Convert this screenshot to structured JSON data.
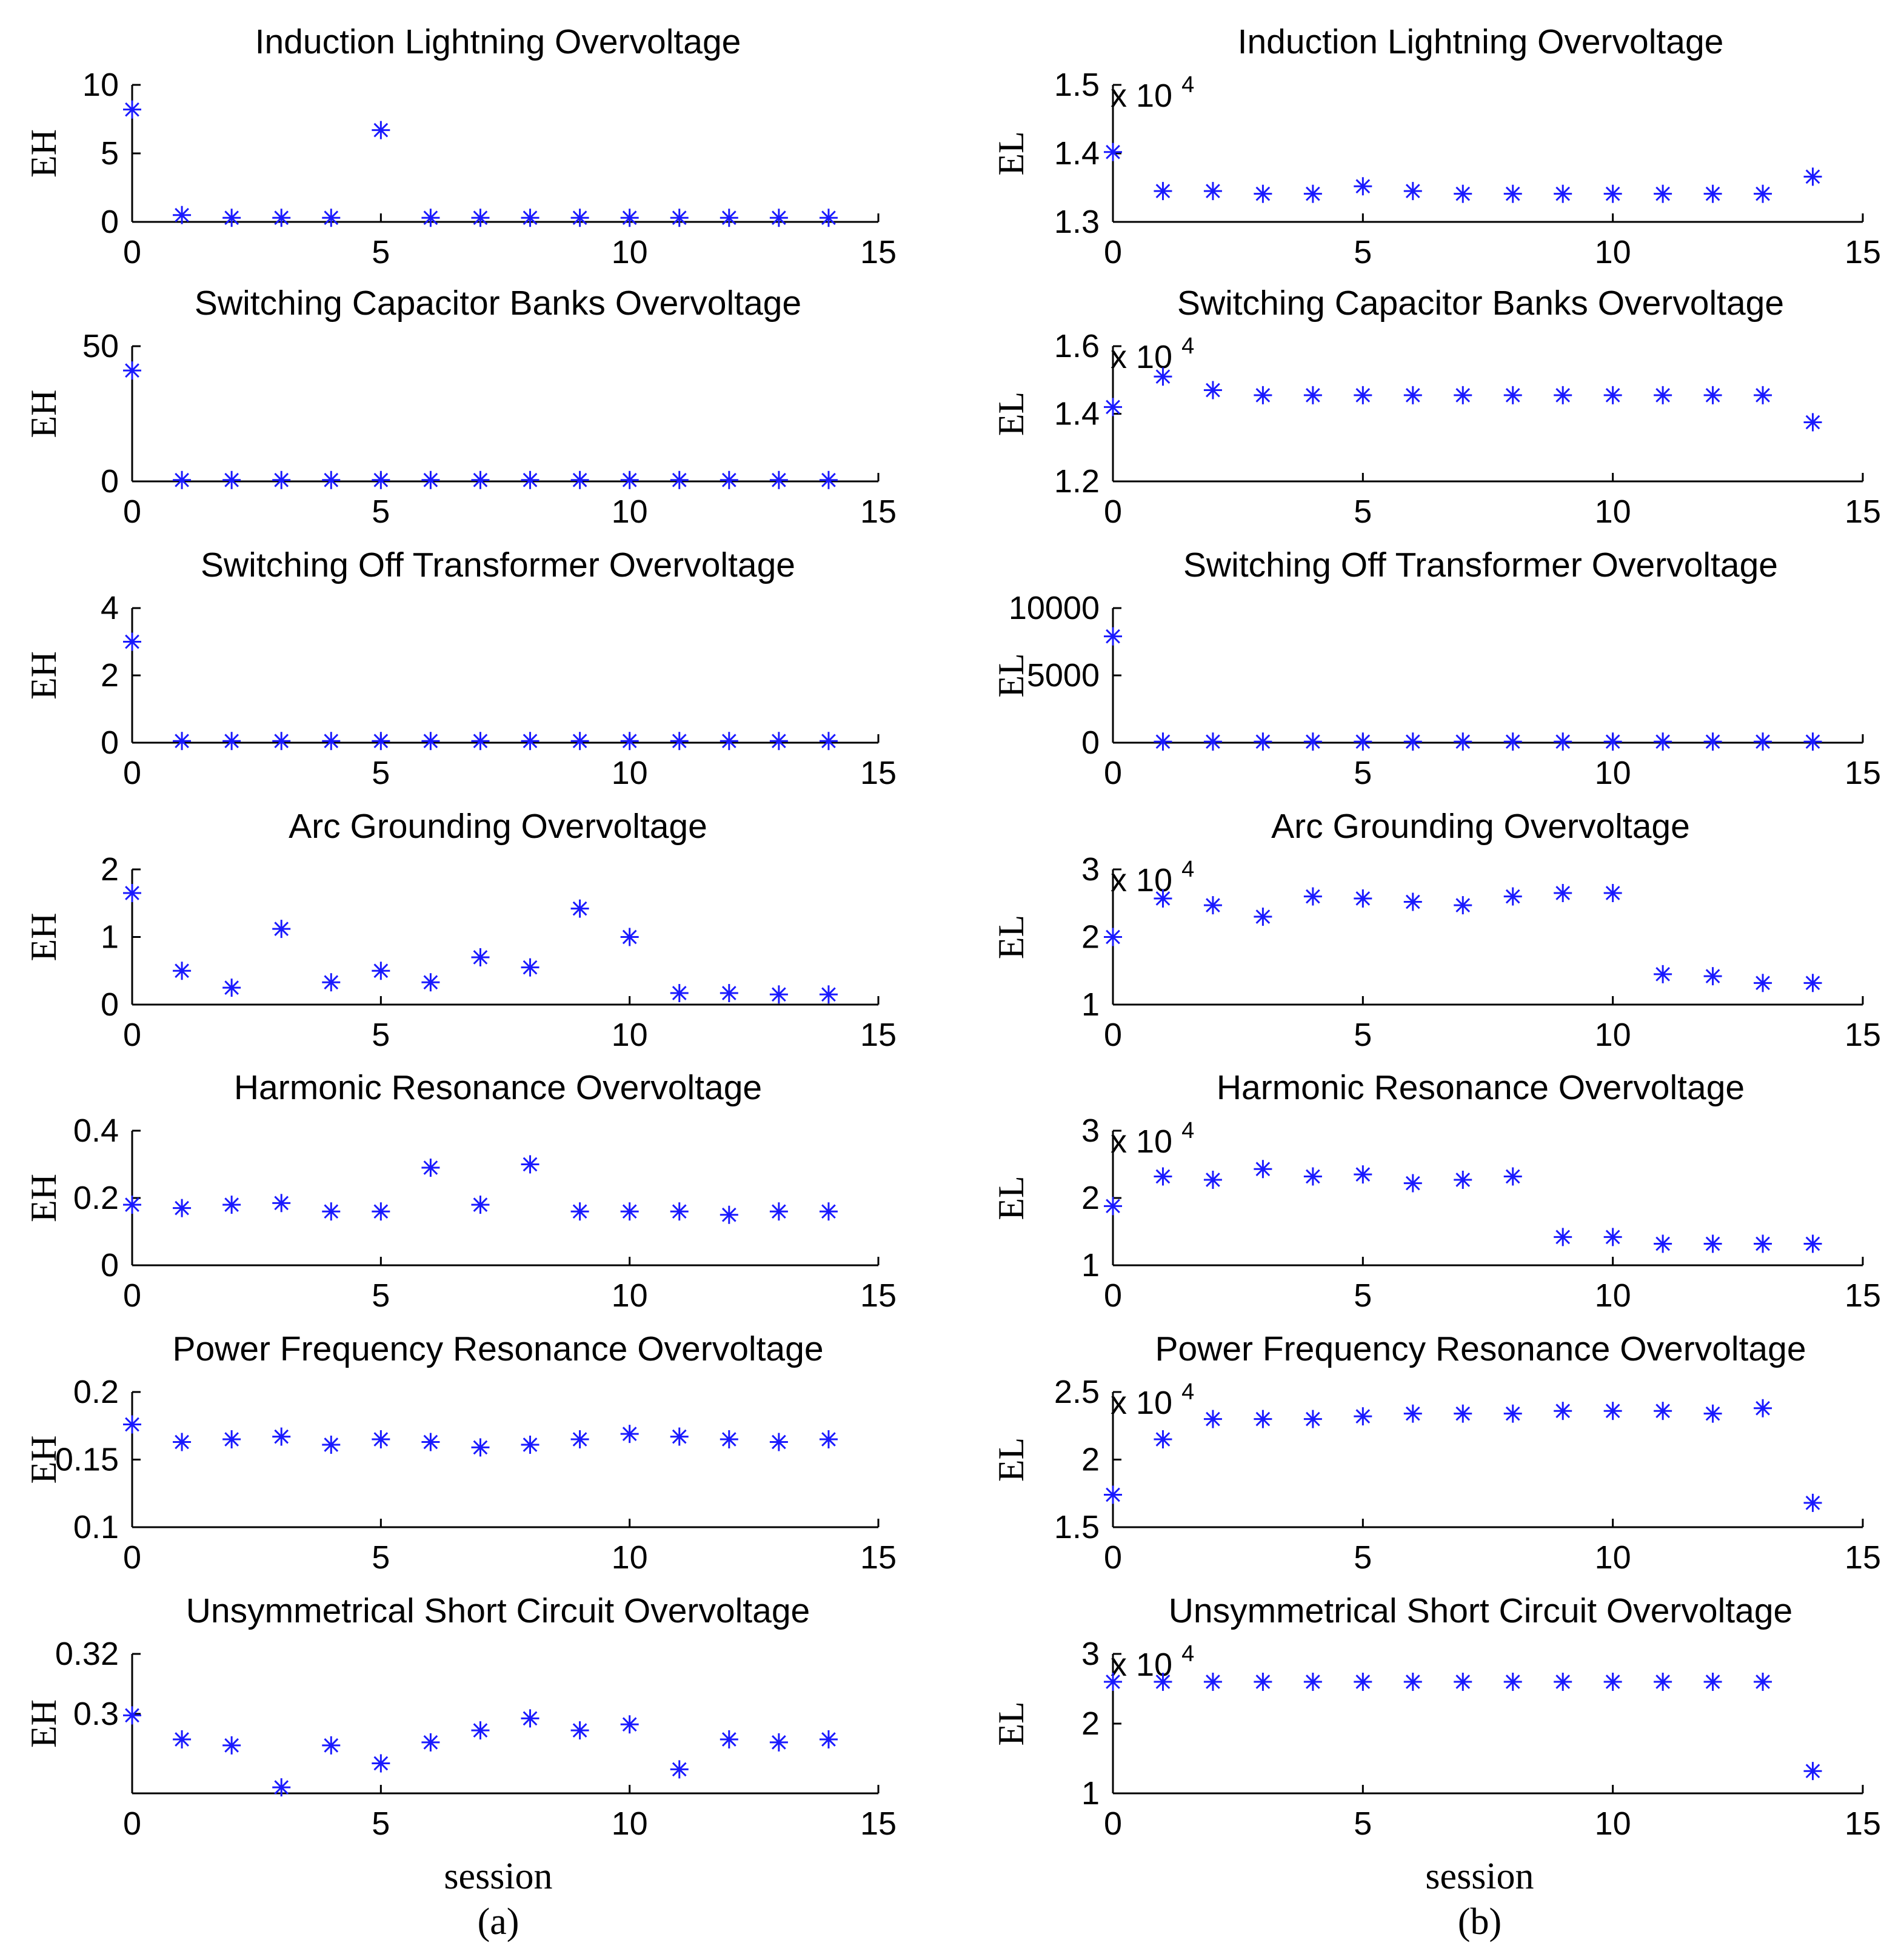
{
  "colors": {
    "marker": "#1a1aff",
    "axis": "#000000",
    "background": "#ffffff"
  },
  "columns": [
    {
      "xlabel": "session",
      "caption": "(a)"
    },
    {
      "xlabel": "session",
      "caption": "(b)"
    }
  ],
  "chart_data": [
    {
      "type": "scatter",
      "column": 0,
      "row": 0,
      "title": "Induction Lightning Overvoltage",
      "ylabel": "EH",
      "xlabel": "",
      "multiplier": "",
      "xlim": [
        0,
        15
      ],
      "xticks": [
        0,
        5,
        10,
        15
      ],
      "xtick_labels": [
        "0",
        "5",
        "10",
        "15"
      ],
      "ylim": [
        0,
        10
      ],
      "yticks": [
        0,
        5,
        10
      ],
      "ytick_labels": [
        "0",
        "5",
        "10"
      ],
      "x": [
        0,
        1,
        2,
        3,
        4,
        5,
        6,
        7,
        8,
        9,
        10,
        11,
        12,
        13,
        14
      ],
      "y": [
        8.2,
        0.5,
        0.3,
        0.3,
        0.3,
        6.7,
        0.3,
        0.3,
        0.3,
        0.3,
        0.3,
        0.3,
        0.3,
        0.3,
        0.3
      ]
    },
    {
      "type": "scatter",
      "column": 0,
      "row": 1,
      "title": "Switching Capacitor Banks Overvoltage",
      "ylabel": "EH",
      "xlabel": "",
      "multiplier": "",
      "xlim": [
        0,
        15
      ],
      "xticks": [
        0,
        5,
        10,
        15
      ],
      "xtick_labels": [
        "0",
        "5",
        "10",
        "15"
      ],
      "ylim": [
        0,
        50
      ],
      "yticks": [
        0,
        50
      ],
      "ytick_labels": [
        "0",
        "50"
      ],
      "x": [
        0,
        1,
        2,
        3,
        4,
        5,
        6,
        7,
        8,
        9,
        10,
        11,
        12,
        13,
        14
      ],
      "y": [
        41,
        0.5,
        0.5,
        0.5,
        0.5,
        0.5,
        0.5,
        0.5,
        0.5,
        0.5,
        0.5,
        0.5,
        0.5,
        0.5,
        0.5
      ]
    },
    {
      "type": "scatter",
      "column": 0,
      "row": 2,
      "title": "Switching Off Transformer Overvoltage",
      "ylabel": "EH",
      "xlabel": "",
      "multiplier": "",
      "xlim": [
        0,
        15
      ],
      "xticks": [
        0,
        5,
        10,
        15
      ],
      "xtick_labels": [
        "0",
        "5",
        "10",
        "15"
      ],
      "ylim": [
        0,
        4
      ],
      "yticks": [
        0,
        2,
        4
      ],
      "ytick_labels": [
        "0",
        "2",
        "4"
      ],
      "x": [
        0,
        1,
        2,
        3,
        4,
        5,
        6,
        7,
        8,
        9,
        10,
        11,
        12,
        13,
        14
      ],
      "y": [
        3.0,
        0.05,
        0.05,
        0.05,
        0.05,
        0.05,
        0.05,
        0.05,
        0.05,
        0.05,
        0.05,
        0.05,
        0.05,
        0.05,
        0.05
      ]
    },
    {
      "type": "scatter",
      "column": 0,
      "row": 3,
      "title": "Arc Grounding Overvoltage",
      "ylabel": "EH",
      "xlabel": "",
      "multiplier": "",
      "xlim": [
        0,
        15
      ],
      "xticks": [
        0,
        5,
        10,
        15
      ],
      "xtick_labels": [
        "0",
        "5",
        "10",
        "15"
      ],
      "ylim": [
        0,
        2
      ],
      "yticks": [
        0,
        1,
        2
      ],
      "ytick_labels": [
        "0",
        "1",
        "2"
      ],
      "x": [
        0,
        1,
        2,
        3,
        4,
        5,
        6,
        7,
        8,
        9,
        10,
        11,
        12,
        13,
        14
      ],
      "y": [
        1.65,
        0.5,
        0.25,
        1.12,
        0.33,
        0.5,
        0.33,
        0.7,
        0.55,
        1.42,
        1.0,
        0.17,
        0.17,
        0.15,
        0.15
      ]
    },
    {
      "type": "scatter",
      "column": 0,
      "row": 4,
      "title": "Harmonic Resonance Overvoltage",
      "ylabel": "EH",
      "xlabel": "",
      "multiplier": "",
      "xlim": [
        0,
        15
      ],
      "xticks": [
        0,
        5,
        10,
        15
      ],
      "xtick_labels": [
        "0",
        "5",
        "10",
        "15"
      ],
      "ylim": [
        0,
        0.4
      ],
      "yticks": [
        0,
        0.2,
        0.4
      ],
      "ytick_labels": [
        "0",
        "0.2",
        "0.4"
      ],
      "x": [
        0,
        1,
        2,
        3,
        4,
        5,
        6,
        7,
        8,
        9,
        10,
        11,
        12,
        13,
        14
      ],
      "y": [
        0.18,
        0.17,
        0.18,
        0.185,
        0.16,
        0.16,
        0.29,
        0.18,
        0.3,
        0.16,
        0.16,
        0.16,
        0.15,
        0.16,
        0.16
      ]
    },
    {
      "type": "scatter",
      "column": 0,
      "row": 5,
      "title": "Power Frequency Resonance Overvoltage",
      "ylabel": "EH",
      "xlabel": "",
      "multiplier": "",
      "xlim": [
        0,
        15
      ],
      "xticks": [
        0,
        5,
        10,
        15
      ],
      "xtick_labels": [
        "0",
        "5",
        "10",
        "15"
      ],
      "ylim": [
        0.1,
        0.2
      ],
      "yticks": [
        0.1,
        0.15,
        0.2
      ],
      "ytick_labels": [
        "0.1",
        "0.15",
        "0.2"
      ],
      "x": [
        0,
        1,
        2,
        3,
        4,
        5,
        6,
        7,
        8,
        9,
        10,
        11,
        12,
        13,
        14
      ],
      "y": [
        0.176,
        0.163,
        0.165,
        0.167,
        0.161,
        0.165,
        0.163,
        0.159,
        0.161,
        0.165,
        0.169,
        0.167,
        0.165,
        0.163,
        0.165
      ]
    },
    {
      "type": "scatter",
      "column": 0,
      "row": 6,
      "title": "Unsymmetrical Short Circuit Overvoltage",
      "ylabel": "EH",
      "xlabel": "session",
      "multiplier": "",
      "xlim": [
        0,
        15
      ],
      "xticks": [
        0,
        5,
        10,
        15
      ],
      "xtick_labels": [
        "0",
        "5",
        "10",
        "15"
      ],
      "ylim": [
        0.2735,
        0.32
      ],
      "yticks": [
        0.3,
        0.32
      ],
      "ytick_labels": [
        "0.3",
        "0.32"
      ],
      "x": [
        0,
        1,
        2,
        3,
        4,
        5,
        6,
        7,
        8,
        9,
        10,
        11,
        12,
        13,
        14
      ],
      "y": [
        0.2995,
        0.2915,
        0.2895,
        0.2755,
        0.2895,
        0.2835,
        0.2905,
        0.2945,
        0.2985,
        0.2945,
        0.2965,
        0.2815,
        0.2915,
        0.2905,
        0.2915
      ]
    },
    {
      "type": "scatter",
      "column": 1,
      "row": 0,
      "title": "Induction Lightning Overvoltage",
      "ylabel": "EL",
      "xlabel": "",
      "multiplier": "x 10^4",
      "xlim": [
        0,
        15
      ],
      "xticks": [
        0,
        5,
        10,
        15
      ],
      "xtick_labels": [
        "0",
        "5",
        "10",
        "15"
      ],
      "ylim": [
        1.3,
        1.5
      ],
      "yticks": [
        1.3,
        1.4,
        1.5
      ],
      "ytick_labels": [
        "1.3",
        "1.4",
        "1.5"
      ],
      "x": [
        0,
        1,
        2,
        3,
        4,
        5,
        6,
        7,
        8,
        9,
        10,
        11,
        12,
        13,
        14
      ],
      "y": [
        1.402,
        1.345,
        1.345,
        1.341,
        1.341,
        1.352,
        1.345,
        1.341,
        1.341,
        1.341,
        1.341,
        1.341,
        1.341,
        1.341,
        1.366
      ]
    },
    {
      "type": "scatter",
      "column": 1,
      "row": 1,
      "title": "Switching Capacitor Banks Overvoltage",
      "ylabel": "EL",
      "xlabel": "",
      "multiplier": "x 10^4",
      "xlim": [
        0,
        15
      ],
      "xticks": [
        0,
        5,
        10,
        15
      ],
      "xtick_labels": [
        "0",
        "5",
        "10",
        "15"
      ],
      "ylim": [
        1.2,
        1.6
      ],
      "yticks": [
        1.2,
        1.4,
        1.6
      ],
      "ytick_labels": [
        "1.2",
        "1.4",
        "1.6"
      ],
      "x": [
        0,
        1,
        2,
        3,
        4,
        5,
        6,
        7,
        8,
        9,
        10,
        11,
        12,
        13,
        14
      ],
      "y": [
        1.42,
        1.51,
        1.47,
        1.455,
        1.455,
        1.455,
        1.455,
        1.455,
        1.455,
        1.455,
        1.455,
        1.455,
        1.455,
        1.455,
        1.375
      ]
    },
    {
      "type": "scatter",
      "column": 1,
      "row": 2,
      "title": "Switching Off Transformer Overvoltage",
      "ylabel": "EL",
      "xlabel": "",
      "multiplier": "",
      "xlim": [
        0,
        15
      ],
      "xticks": [
        0,
        5,
        10,
        15
      ],
      "xtick_labels": [
        "0",
        "5",
        "10",
        "15"
      ],
      "ylim": [
        0,
        10000
      ],
      "yticks": [
        0,
        5000,
        10000
      ],
      "ytick_labels": [
        "0",
        "5000",
        "10000"
      ],
      "x": [
        0,
        1,
        2,
        3,
        4,
        5,
        6,
        7,
        8,
        9,
        10,
        11,
        12,
        13,
        14
      ],
      "y": [
        7900,
        80,
        80,
        80,
        80,
        80,
        80,
        80,
        80,
        80,
        80,
        80,
        80,
        80,
        80
      ]
    },
    {
      "type": "scatter",
      "column": 1,
      "row": 3,
      "title": "Arc Grounding Overvoltage",
      "ylabel": "EL",
      "xlabel": "",
      "multiplier": "x 10^4",
      "xlim": [
        0,
        15
      ],
      "xticks": [
        0,
        5,
        10,
        15
      ],
      "xtick_labels": [
        "0",
        "5",
        "10",
        "15"
      ],
      "ylim": [
        1,
        3
      ],
      "yticks": [
        1,
        2,
        3
      ],
      "ytick_labels": [
        "1",
        "2",
        "3"
      ],
      "x": [
        0,
        1,
        2,
        3,
        4,
        5,
        6,
        7,
        8,
        9,
        10,
        11,
        12,
        13,
        14
      ],
      "y": [
        2.0,
        2.57,
        2.47,
        2.3,
        2.6,
        2.57,
        2.52,
        2.47,
        2.6,
        2.65,
        2.65,
        1.45,
        1.42,
        1.32,
        1.32
      ]
    },
    {
      "type": "scatter",
      "column": 1,
      "row": 4,
      "title": "Harmonic Resonance Overvoltage",
      "ylabel": "EL",
      "xlabel": "",
      "multiplier": "x 10^4",
      "xlim": [
        0,
        15
      ],
      "xticks": [
        0,
        5,
        10,
        15
      ],
      "xtick_labels": [
        "0",
        "5",
        "10",
        "15"
      ],
      "ylim": [
        1,
        3
      ],
      "yticks": [
        1,
        2,
        3
      ],
      "ytick_labels": [
        "1",
        "2",
        "3"
      ],
      "x": [
        0,
        1,
        2,
        3,
        4,
        5,
        6,
        7,
        8,
        9,
        10,
        11,
        12,
        13,
        14
      ],
      "y": [
        1.88,
        2.32,
        2.27,
        2.43,
        2.32,
        2.35,
        2.22,
        2.27,
        2.32,
        1.42,
        1.42,
        1.32,
        1.32,
        1.32,
        1.32
      ]
    },
    {
      "type": "scatter",
      "column": 1,
      "row": 5,
      "title": "Power Frequency Resonance Overvoltage",
      "ylabel": "EL",
      "xlabel": "",
      "multiplier": "x 10^4",
      "xlim": [
        0,
        15
      ],
      "xticks": [
        0,
        5,
        10,
        15
      ],
      "xtick_labels": [
        "0",
        "5",
        "10",
        "15"
      ],
      "ylim": [
        1.5,
        2.5
      ],
      "yticks": [
        1.5,
        2,
        2.5
      ],
      "ytick_labels": [
        "1.5",
        "2",
        "2.5"
      ],
      "x": [
        0,
        1,
        2,
        3,
        4,
        5,
        6,
        7,
        8,
        9,
        10,
        11,
        12,
        13,
        14
      ],
      "y": [
        1.74,
        2.15,
        2.3,
        2.3,
        2.3,
        2.32,
        2.34,
        2.34,
        2.34,
        2.36,
        2.36,
        2.36,
        2.34,
        2.38,
        1.68
      ]
    },
    {
      "type": "scatter",
      "column": 1,
      "row": 6,
      "title": "Unsymmetrical Short Circuit Overvoltage",
      "ylabel": "EL",
      "xlabel": "session",
      "multiplier": "x 10^4",
      "xlim": [
        0,
        15
      ],
      "xticks": [
        0,
        5,
        10,
        15
      ],
      "xtick_labels": [
        "0",
        "5",
        "10",
        "15"
      ],
      "ylim": [
        1,
        3
      ],
      "yticks": [
        1,
        2,
        3
      ],
      "ytick_labels": [
        "1",
        "2",
        "3"
      ],
      "x": [
        0,
        1,
        2,
        3,
        4,
        5,
        6,
        7,
        8,
        9,
        10,
        11,
        12,
        13,
        14
      ],
      "y": [
        2.6,
        2.6,
        2.6,
        2.6,
        2.6,
        2.6,
        2.6,
        2.6,
        2.6,
        2.6,
        2.6,
        2.6,
        2.6,
        2.6,
        1.32
      ]
    }
  ]
}
